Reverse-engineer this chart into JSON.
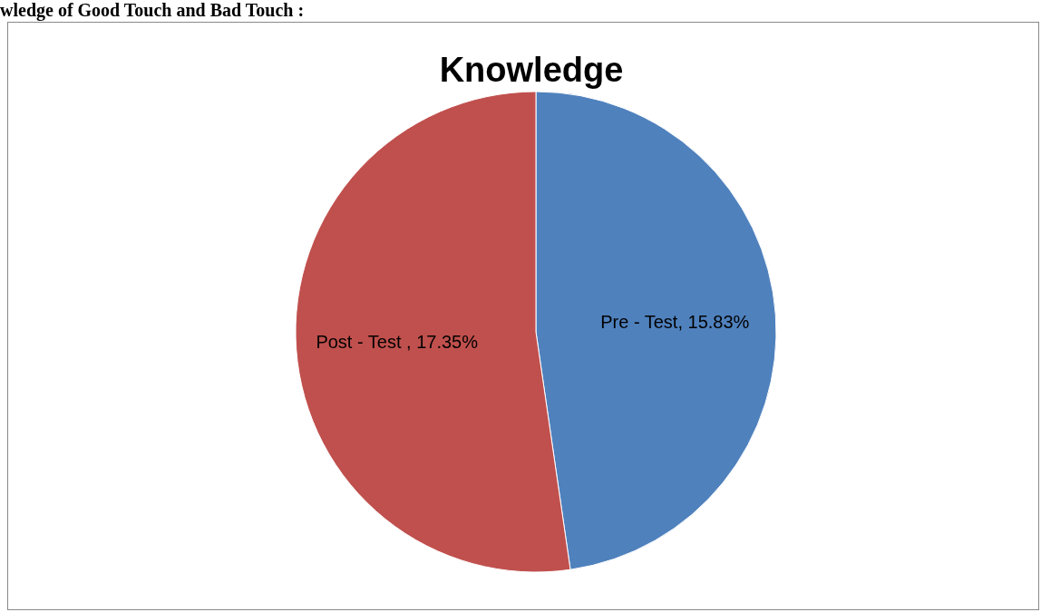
{
  "chart_data": {
    "type": "pie",
    "title": "Knowledge",
    "annotations": [
      "wledge of Good Touch and Bad Touch :"
    ],
    "categories": [
      "Pre - Test",
      "Post - Test "
    ],
    "values": [
      15.83,
      17.35
    ],
    "colors": [
      "#4f81bd",
      "#c0504d"
    ],
    "value_labels": [
      ", 15.83%",
      ", 17.35%"
    ],
    "legend": false
  }
}
